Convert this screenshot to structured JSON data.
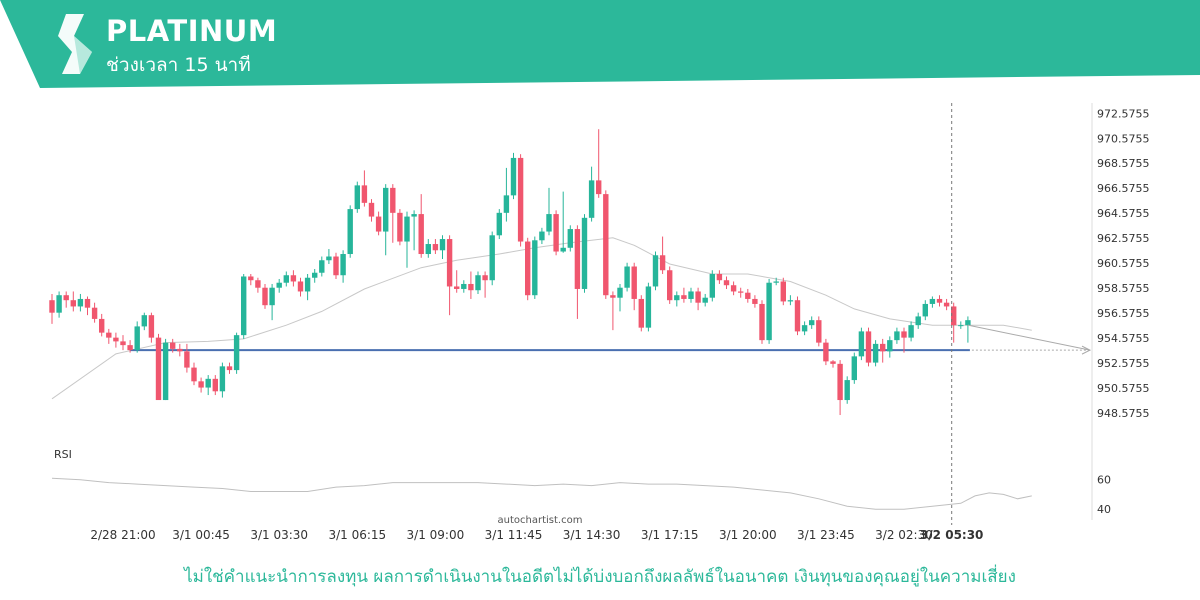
{
  "header": {
    "symbol": "PLATINUM",
    "timeframe": "ช่วงเวลา 15 นาที",
    "color": "#2cb89a"
  },
  "watermark": "autochartist.com",
  "disclaimer": "ไม่ใช่คำแนะนำการลงทุน ผลการดำเนินงานในอดีตไม่ได้บ่งบอกถึงผลลัพธ์ในอนาคต เงินทุนของคุณอยู่ในความเสี่ยง",
  "chart_data": {
    "type": "candlestick",
    "colors": {
      "up": "#26b59a",
      "down": "#f0566e",
      "support": "#4a6fb0",
      "ma": "#c8c8c8"
    },
    "price_axis": {
      "ticks": [
        "972.5755",
        "970.5755",
        "968.5755",
        "966.5755",
        "964.5755",
        "962.5755",
        "960.5755",
        "958.5755",
        "956.5755",
        "954.5755",
        "952.5755",
        "950.5755",
        "948.5755"
      ],
      "ylim": [
        947.2,
        973.4
      ]
    },
    "time_axis": {
      "ticks": [
        "2/28 21:00",
        "3/1 00:45",
        "3/1 03:30",
        "3/1 06:15",
        "3/1 09:00",
        "3/1 11:45",
        "3/1 14:30",
        "3/1 17:15",
        "3/1 20:00",
        "3/1 23:45",
        "3/2 02:30",
        "3/2 05:30"
      ],
      "current": "3/2 05:30"
    },
    "support_level": 953.6,
    "candles": [
      [
        957.6,
        956.6,
        958.1,
        955.7
      ],
      [
        956.6,
        958.0,
        958.3,
        956.2
      ],
      [
        958.0,
        957.6,
        958.3,
        957.0
      ],
      [
        957.6,
        957.1,
        958.3,
        956.7
      ],
      [
        957.1,
        957.7,
        958.1,
        956.7
      ],
      [
        957.7,
        957.0,
        957.9,
        956.4
      ],
      [
        957.0,
        956.1,
        957.4,
        955.8
      ],
      [
        956.1,
        955.0,
        956.5,
        954.7
      ],
      [
        955.0,
        954.6,
        955.3,
        954.1
      ],
      [
        954.6,
        954.3,
        955.0,
        953.8
      ],
      [
        954.3,
        954.0,
        954.8,
        953.6
      ],
      [
        954.0,
        953.6,
        954.4,
        953.4
      ],
      [
        953.6,
        955.5,
        955.9,
        953.4
      ],
      [
        955.5,
        956.4,
        956.6,
        955.2
      ],
      [
        956.4,
        954.6,
        956.6,
        954.2
      ],
      [
        954.6,
        949.6,
        954.9,
        949.6
      ],
      [
        949.6,
        954.2,
        954.5,
        949.6
      ],
      [
        954.2,
        953.7,
        954.5,
        953.4
      ],
      [
        953.7,
        953.5,
        954.1,
        953.1
      ],
      [
        953.5,
        952.2,
        954.1,
        951.8
      ],
      [
        952.2,
        951.1,
        952.6,
        950.8
      ],
      [
        951.1,
        950.6,
        951.4,
        950.2
      ],
      [
        950.6,
        951.3,
        951.6,
        950.0
      ],
      [
        951.3,
        950.3,
        951.6,
        950.0
      ],
      [
        950.3,
        952.3,
        952.6,
        949.8
      ],
      [
        952.3,
        952.0,
        952.6,
        951.7
      ],
      [
        952.0,
        954.8,
        955.0,
        951.7
      ],
      [
        954.8,
        959.5,
        959.7,
        954.5
      ],
      [
        959.5,
        959.2,
        959.7,
        958.8
      ],
      [
        959.2,
        958.6,
        959.4,
        958.2
      ],
      [
        958.6,
        957.2,
        958.9,
        956.9
      ],
      [
        957.2,
        958.6,
        958.9,
        956.0
      ],
      [
        958.6,
        959.0,
        959.3,
        958.2
      ],
      [
        959.0,
        959.6,
        959.9,
        958.7
      ],
      [
        959.6,
        959.1,
        960.0,
        958.7
      ],
      [
        959.1,
        958.3,
        959.4,
        957.9
      ],
      [
        958.3,
        959.4,
        959.7,
        957.6
      ],
      [
        959.4,
        959.8,
        960.1,
        959.0
      ],
      [
        959.8,
        960.8,
        961.1,
        959.5
      ],
      [
        960.8,
        961.1,
        961.7,
        960.5
      ],
      [
        961.1,
        959.6,
        961.4,
        959.3
      ],
      [
        959.6,
        961.3,
        961.6,
        959.0
      ],
      [
        961.3,
        964.9,
        965.2,
        961.0
      ],
      [
        964.9,
        966.8,
        967.1,
        964.6
      ],
      [
        966.8,
        965.4,
        968.0,
        965.1
      ],
      [
        965.4,
        964.3,
        965.7,
        963.9
      ],
      [
        964.3,
        963.1,
        964.7,
        962.8
      ],
      [
        963.1,
        966.6,
        966.9,
        961.2
      ],
      [
        966.6,
        964.6,
        966.9,
        962.2
      ],
      [
        964.6,
        962.3,
        964.9,
        962.0
      ],
      [
        962.3,
        964.3,
        964.7,
        960.2
      ],
      [
        964.3,
        964.5,
        964.8,
        961.6
      ],
      [
        964.5,
        961.3,
        966.1,
        961.0
      ],
      [
        961.3,
        962.1,
        962.5,
        961.0
      ],
      [
        962.1,
        961.6,
        962.5,
        961.3
      ],
      [
        961.6,
        962.5,
        962.8,
        960.9
      ],
      [
        962.5,
        958.7,
        962.8,
        956.4
      ],
      [
        958.7,
        958.5,
        960.0,
        958.2
      ],
      [
        958.5,
        958.9,
        959.2,
        958.2
      ],
      [
        958.9,
        958.4,
        959.9,
        957.7
      ],
      [
        958.4,
        959.6,
        959.9,
        958.1
      ],
      [
        959.6,
        959.2,
        959.9,
        957.8
      ],
      [
        959.2,
        962.8,
        963.1,
        958.8
      ],
      [
        962.8,
        964.6,
        964.9,
        962.5
      ],
      [
        964.6,
        966.0,
        968.2,
        963.9
      ],
      [
        966.0,
        969.0,
        969.4,
        965.7
      ],
      [
        969.0,
        962.3,
        969.3,
        961.9
      ],
      [
        962.3,
        958.0,
        962.6,
        957.6
      ],
      [
        958.0,
        962.4,
        962.7,
        957.7
      ],
      [
        962.4,
        963.1,
        963.4,
        962.1
      ],
      [
        963.1,
        964.5,
        966.6,
        962.8
      ],
      [
        964.5,
        961.5,
        964.8,
        961.2
      ],
      [
        961.5,
        961.8,
        966.3,
        961.4
      ],
      [
        961.8,
        963.3,
        963.6,
        961.5
      ],
      [
        963.3,
        958.5,
        963.6,
        956.1
      ],
      [
        958.5,
        964.2,
        964.5,
        958.2
      ],
      [
        964.2,
        967.2,
        968.3,
        963.9
      ],
      [
        967.2,
        966.1,
        971.3,
        965.8
      ],
      [
        966.1,
        958.0,
        966.4,
        957.7
      ],
      [
        958.0,
        957.8,
        958.3,
        955.2
      ],
      [
        957.8,
        958.6,
        958.9,
        956.7
      ],
      [
        958.6,
        960.3,
        960.6,
        958.3
      ],
      [
        960.3,
        957.7,
        960.6,
        956.8
      ],
      [
        957.7,
        955.4,
        958.0,
        955.1
      ],
      [
        955.4,
        958.7,
        959.0,
        955.1
      ],
      [
        958.7,
        961.2,
        961.5,
        958.4
      ],
      [
        961.2,
        960.0,
        962.7,
        959.7
      ],
      [
        960.0,
        957.6,
        960.3,
        957.3
      ],
      [
        957.6,
        958.0,
        958.3,
        957.1
      ],
      [
        958.0,
        957.7,
        958.6,
        957.4
      ],
      [
        957.7,
        958.3,
        958.6,
        957.4
      ],
      [
        958.3,
        957.4,
        958.6,
        956.8
      ],
      [
        957.4,
        957.8,
        958.1,
        957.1
      ],
      [
        957.8,
        959.7,
        960.0,
        957.5
      ],
      [
        959.7,
        959.2,
        960.0,
        958.9
      ],
      [
        959.2,
        958.8,
        959.5,
        958.5
      ],
      [
        958.8,
        958.3,
        959.1,
        958.0
      ],
      [
        958.3,
        958.2,
        958.6,
        957.8
      ],
      [
        958.2,
        957.7,
        958.5,
        957.4
      ],
      [
        957.7,
        957.3,
        958.0,
        957.0
      ],
      [
        957.3,
        954.4,
        957.6,
        954.1
      ],
      [
        954.4,
        959.0,
        959.3,
        954.1
      ],
      [
        959.0,
        959.1,
        959.4,
        958.8
      ],
      [
        959.1,
        957.5,
        959.4,
        957.2
      ],
      [
        957.5,
        957.6,
        958.0,
        957.2
      ],
      [
        957.6,
        955.1,
        957.9,
        954.8
      ],
      [
        955.1,
        955.6,
        955.9,
        954.8
      ],
      [
        955.6,
        956.0,
        956.3,
        955.3
      ],
      [
        956.0,
        954.2,
        956.3,
        953.9
      ],
      [
        954.2,
        952.7,
        954.5,
        952.4
      ],
      [
        952.7,
        952.5,
        952.8,
        952.2
      ],
      [
        952.5,
        949.6,
        952.8,
        948.4
      ],
      [
        949.6,
        951.2,
        951.5,
        949.3
      ],
      [
        951.2,
        953.1,
        953.4,
        950.9
      ],
      [
        953.1,
        955.1,
        955.4,
        952.8
      ],
      [
        955.1,
        952.6,
        955.4,
        952.3
      ],
      [
        952.6,
        954.1,
        954.4,
        952.3
      ],
      [
        954.1,
        953.5,
        954.5,
        952.6
      ],
      [
        953.5,
        954.4,
        954.7,
        953.0
      ],
      [
        954.4,
        955.1,
        955.4,
        954.1
      ],
      [
        955.1,
        954.6,
        955.4,
        953.4
      ],
      [
        954.6,
        955.6,
        955.9,
        954.3
      ],
      [
        955.6,
        956.3,
        956.6,
        955.3
      ],
      [
        956.3,
        957.3,
        957.6,
        956.0
      ],
      [
        957.3,
        957.7,
        957.9,
        957.0
      ],
      [
        957.7,
        957.4,
        958.0,
        957.1
      ],
      [
        957.4,
        957.1,
        957.7,
        956.8
      ],
      [
        957.1,
        955.6,
        957.4,
        954.2
      ],
      [
        955.6,
        955.6,
        955.9,
        955.3
      ],
      [
        955.6,
        956.0,
        956.3,
        954.2
      ]
    ],
    "moving_average": [
      [
        0,
        949.7
      ],
      [
        9,
        953.3
      ],
      [
        16,
        954.2
      ],
      [
        22,
        954.3
      ],
      [
        27,
        954.5
      ],
      [
        33,
        955.6
      ],
      [
        38,
        956.7
      ],
      [
        44,
        958.5
      ],
      [
        52,
        960.2
      ],
      [
        57,
        960.8
      ],
      [
        63,
        961.3
      ],
      [
        68,
        961.8
      ],
      [
        73,
        962.2
      ],
      [
        79,
        962.6
      ],
      [
        82,
        962.0
      ],
      [
        87,
        960.5
      ],
      [
        93,
        959.7
      ],
      [
        98,
        959.7
      ],
      [
        104,
        959.1
      ],
      [
        109,
        958.0
      ],
      [
        113,
        956.9
      ],
      [
        118,
        956.1
      ],
      [
        124,
        955.6
      ],
      [
        129,
        955.6
      ],
      [
        134,
        955.6
      ],
      [
        138,
        955.2
      ]
    ],
    "rsi": {
      "label": "RSI",
      "ticks": [
        "60",
        "40"
      ],
      "ylim": [
        34,
        72
      ],
      "values": [
        [
          0,
          61
        ],
        [
          4,
          60
        ],
        [
          8,
          58
        ],
        [
          12,
          57
        ],
        [
          16,
          56
        ],
        [
          20,
          55
        ],
        [
          24,
          54
        ],
        [
          28,
          52
        ],
        [
          32,
          52
        ],
        [
          36,
          52
        ],
        [
          40,
          55
        ],
        [
          44,
          56
        ],
        [
          48,
          58
        ],
        [
          52,
          58
        ],
        [
          56,
          58
        ],
        [
          60,
          58
        ],
        [
          64,
          57
        ],
        [
          68,
          56
        ],
        [
          72,
          57
        ],
        [
          76,
          56
        ],
        [
          80,
          58
        ],
        [
          84,
          57
        ],
        [
          88,
          57
        ],
        [
          92,
          56
        ],
        [
          96,
          55
        ],
        [
          100,
          53
        ],
        [
          104,
          51
        ],
        [
          108,
          47
        ],
        [
          112,
          42
        ],
        [
          116,
          40
        ],
        [
          120,
          40
        ],
        [
          124,
          42
        ],
        [
          128,
          44
        ],
        [
          130,
          49
        ],
        [
          132,
          51
        ],
        [
          134,
          50
        ],
        [
          136,
          47
        ],
        [
          138,
          49
        ]
      ]
    }
  }
}
